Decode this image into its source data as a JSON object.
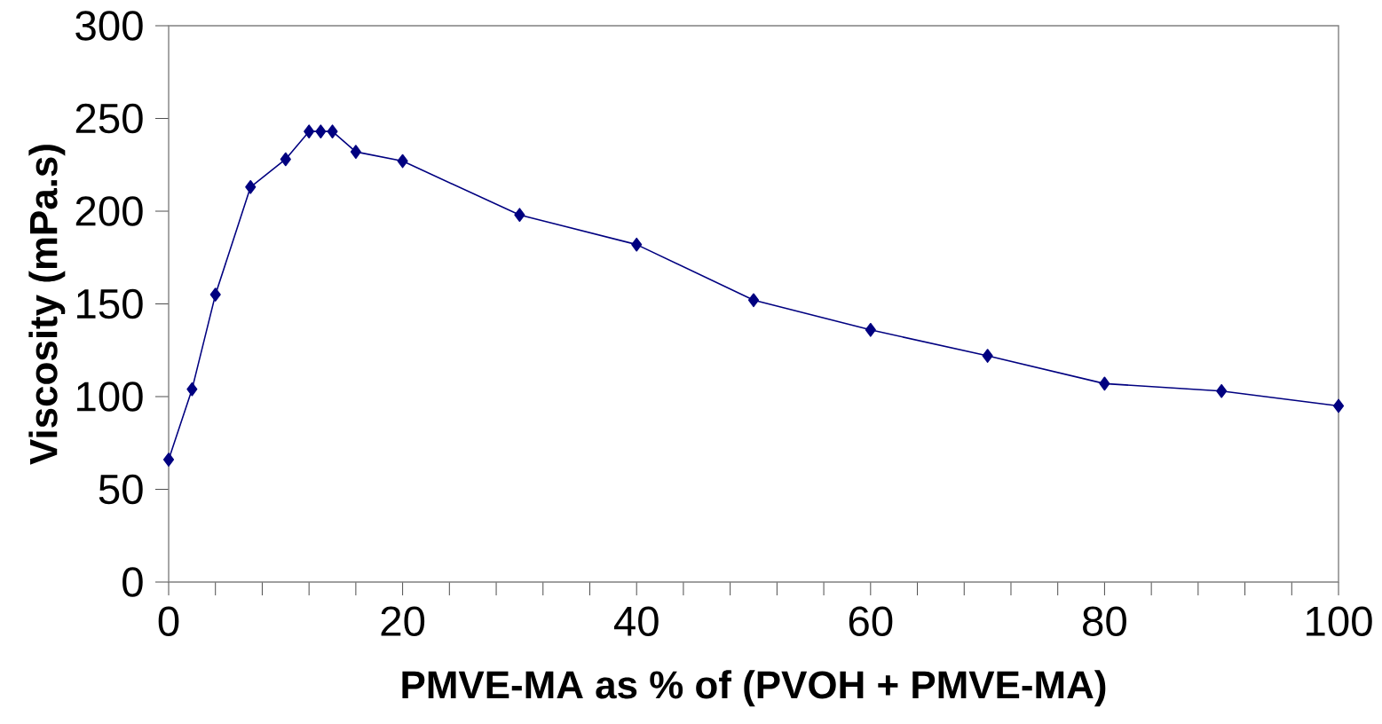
{
  "chart_data": {
    "type": "line",
    "xlabel": "PMVE-MA as % of (PVOH + PMVE-MA)",
    "ylabel": "Viscosity (mPa.s)",
    "x": [
      0,
      2,
      4,
      7,
      10,
      12,
      13,
      14,
      16,
      20,
      30,
      40,
      50,
      60,
      70,
      80,
      90,
      100
    ],
    "series": [
      {
        "color": "#000080",
        "values": [
          66,
          104,
          155,
          213,
          228,
          243,
          243,
          243,
          232,
          227,
          198,
          182,
          152,
          136,
          122,
          107,
          103,
          95
        ]
      }
    ],
    "xlim": [
      0,
      100
    ],
    "ylim": [
      0,
      300
    ],
    "xticks": [
      0,
      {
        "value": 4,
        "label": null
      },
      {
        "value": 8,
        "label": null
      },
      {
        "value": 12,
        "label": null
      },
      {
        "value": 16,
        "label": null
      },
      20,
      {
        "value": 24,
        "label": null
      },
      {
        "value": 28,
        "label": null
      },
      {
        "value": 32,
        "label": null
      },
      {
        "value": 36,
        "label": null
      },
      40,
      {
        "value": 44,
        "label": null
      },
      {
        "value": 48,
        "label": null
      },
      {
        "value": 52,
        "label": null
      },
      {
        "value": 56,
        "label": null
      },
      60,
      {
        "value": 64,
        "label": null
      },
      {
        "value": 68,
        "label": null
      },
      {
        "value": 72,
        "label": null
      },
      {
        "value": 76,
        "label": null
      },
      80,
      {
        "value": 84,
        "label": null
      },
      {
        "value": 88,
        "label": null
      },
      {
        "value": 92,
        "label": null
      },
      {
        "value": 96,
        "label": null
      },
      100
    ],
    "yticks": [
      0,
      50,
      100,
      150,
      200,
      250,
      300
    ],
    "grid": false,
    "marker": "diamond",
    "line_style": "solid"
  }
}
